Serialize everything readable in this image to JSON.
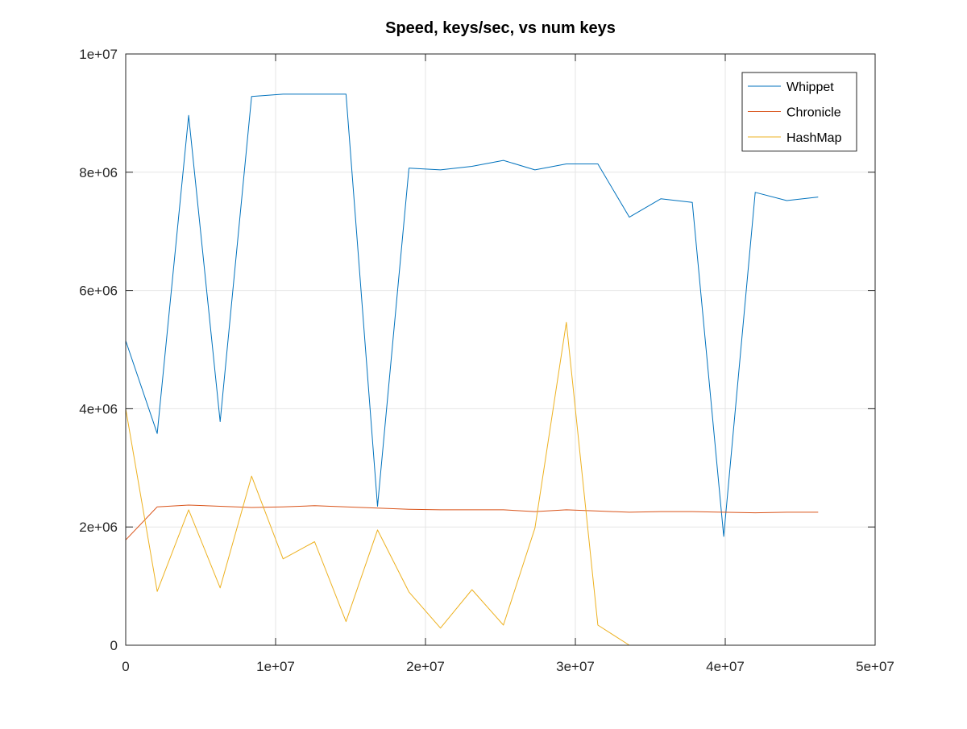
{
  "chart_data": {
    "type": "line",
    "title": "Speed, keys/sec, vs num keys",
    "xlabel": "",
    "ylabel": "",
    "xlim": [
      0,
      50000000
    ],
    "ylim": [
      0,
      10000000
    ],
    "xticks": [
      0,
      10000000,
      20000000,
      30000000,
      40000000,
      50000000
    ],
    "xtick_labels": [
      "0",
      "1e+07",
      "2e+07",
      "3e+07",
      "4e+07",
      "5e+07"
    ],
    "yticks": [
      0,
      2000000,
      4000000,
      6000000,
      8000000,
      10000000
    ],
    "ytick_labels": [
      "0",
      "2e+06",
      "4e+06",
      "6e+06",
      "8e+06",
      "1e+07"
    ],
    "grid": true,
    "legend_position": "top-right",
    "x": [
      0,
      2100000,
      4200000,
      6300000,
      8400000,
      10500000,
      12600000,
      14700000,
      16800000,
      18900000,
      21000000,
      23100000,
      25200000,
      27300000,
      29400000,
      31500000,
      33600000,
      35700000,
      37800000,
      39900000,
      42000000,
      44100000,
      46200000
    ],
    "series": [
      {
        "name": "Whippet",
        "color": "#0072bd",
        "values": [
          5150000,
          3580000,
          8960000,
          3780000,
          9280000,
          9320000,
          9320000,
          9320000,
          2350000,
          8070000,
          8040000,
          8100000,
          8200000,
          8040000,
          8140000,
          8140000,
          7240000,
          7550000,
          7490000,
          1840000,
          7660000,
          7520000,
          7580000
        ]
      },
      {
        "name": "Chronicle",
        "color": "#d95319",
        "values": [
          1780000,
          2340000,
          2370000,
          2350000,
          2330000,
          2340000,
          2360000,
          2340000,
          2320000,
          2300000,
          2290000,
          2290000,
          2290000,
          2260000,
          2290000,
          2270000,
          2250000,
          2260000,
          2260000,
          2250000,
          2240000,
          2250000,
          2250000
        ]
      },
      {
        "name": "HashMap",
        "color": "#edb120",
        "values": [
          4000000,
          910000,
          2290000,
          970000,
          2860000,
          1460000,
          1750000,
          400000,
          1950000,
          900000,
          290000,
          940000,
          340000,
          1980000,
          5460000,
          340000,
          0,
          null,
          null,
          null,
          null,
          null,
          null
        ]
      }
    ]
  }
}
